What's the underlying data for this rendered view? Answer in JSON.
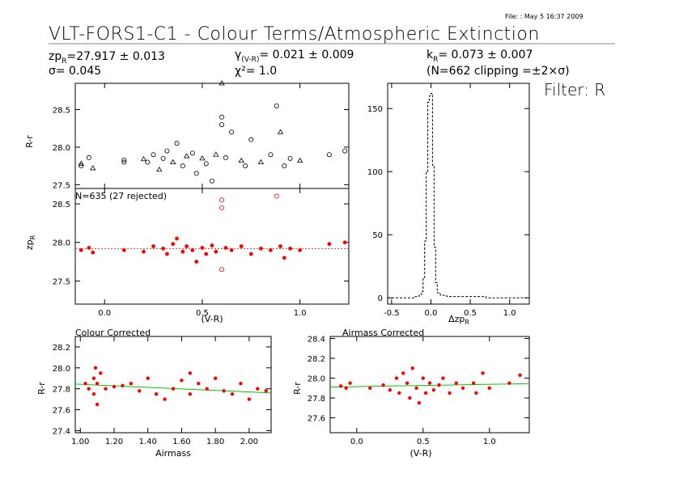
{
  "header": {
    "file_info": "File:   : May  5 16:37 2009",
    "title": "VLT-FORS1-C1 - Colour Terms/Atmospheric Extinction",
    "zp_label": "zp",
    "zp_sub": "R",
    "zp_value": "=27.917 ± 0.013",
    "sigma_text": "σ= 0.045",
    "gamma_label": "γ",
    "gamma_sub": "(V-R)",
    "gamma_value": "= 0.021 ± 0.009",
    "chi_text": "χ²=  1.0",
    "k_label": "k",
    "k_sub": "R",
    "k_value": "= 0.073 ± 0.007",
    "clip_text": "(N=662 clipping =±2×σ)",
    "filter_text": "Filter: R"
  },
  "colors": {
    "data": "#ff0000",
    "fit_line": "#00cc00",
    "zero_line": "#ff0000"
  },
  "chart_data": [
    {
      "type": "scatter",
      "panel": "raw colour term",
      "ylabel": "R-r",
      "xlim": [
        -0.15,
        1.25
      ],
      "ylim": [
        27.45,
        28.85
      ],
      "yticks": [
        27.5,
        28.0,
        28.5
      ],
      "note": "black circles and triangles; values approximate",
      "points": [
        [
          -0.12,
          27.78
        ],
        [
          -0.12,
          27.75
        ],
        [
          -0.08,
          27.86
        ],
        [
          -0.06,
          27.72
        ],
        [
          0.1,
          27.83
        ],
        [
          0.1,
          27.8
        ],
        [
          0.2,
          27.84
        ],
        [
          0.22,
          27.8
        ],
        [
          0.25,
          27.9
        ],
        [
          0.28,
          27.7
        ],
        [
          0.3,
          27.85
        ],
        [
          0.32,
          27.95
        ],
        [
          0.35,
          27.8
        ],
        [
          0.37,
          28.05
        ],
        [
          0.4,
          27.75
        ],
        [
          0.42,
          27.88
        ],
        [
          0.45,
          27.92
        ],
        [
          0.47,
          27.65
        ],
        [
          0.5,
          27.85
        ],
        [
          0.52,
          27.78
        ],
        [
          0.55,
          27.55
        ],
        [
          0.57,
          27.9
        ],
        [
          0.6,
          28.4
        ],
        [
          0.6,
          28.3
        ],
        [
          0.6,
          28.85
        ],
        [
          0.62,
          27.86
        ],
        [
          0.65,
          28.2
        ],
        [
          0.7,
          27.82
        ],
        [
          0.72,
          27.75
        ],
        [
          0.75,
          28.1
        ],
        [
          0.8,
          27.8
        ],
        [
          0.85,
          27.9
        ],
        [
          0.88,
          28.55
        ],
        [
          0.9,
          28.2
        ],
        [
          0.92,
          27.75
        ],
        [
          0.95,
          27.85
        ],
        [
          1.0,
          27.82
        ],
        [
          1.15,
          27.9
        ],
        [
          1.23,
          27.95
        ]
      ]
    },
    {
      "type": "scatter",
      "panel": "zero point",
      "label": "N=635 (27 rejected)",
      "ylabel": "zp",
      "ylabel_sub": "R",
      "xlabel": "(V-R)",
      "xlim": [
        -0.15,
        1.25
      ],
      "ylim": [
        27.2,
        28.7
      ],
      "xticks": [
        0.0,
        0.5,
        1.0
      ],
      "xticklabels": [
        "0.0",
        "0.5",
        "1.0"
      ],
      "yticks": [
        27.5,
        28.0,
        28.5
      ],
      "reference_y": 27.917,
      "points": [
        [
          -0.12,
          27.9
        ],
        [
          -0.08,
          27.93
        ],
        [
          -0.06,
          27.87
        ],
        [
          0.1,
          27.9
        ],
        [
          0.2,
          27.88
        ],
        [
          0.25,
          27.95
        ],
        [
          0.3,
          27.92
        ],
        [
          0.32,
          27.85
        ],
        [
          0.35,
          27.98
        ],
        [
          0.37,
          28.05
        ],
        [
          0.4,
          27.88
        ],
        [
          0.42,
          27.95
        ],
        [
          0.45,
          27.9
        ],
        [
          0.47,
          27.75
        ],
        [
          0.5,
          27.93
        ],
        [
          0.52,
          27.85
        ],
        [
          0.55,
          27.96
        ],
        [
          0.57,
          27.88
        ],
        [
          0.6,
          28.45
        ],
        [
          0.6,
          28.55
        ],
        [
          0.6,
          27.65
        ],
        [
          0.62,
          27.93
        ],
        [
          0.65,
          27.9
        ],
        [
          0.7,
          27.95
        ],
        [
          0.75,
          27.85
        ],
        [
          0.8,
          27.92
        ],
        [
          0.85,
          27.9
        ],
        [
          0.88,
          28.6
        ],
        [
          0.9,
          27.95
        ],
        [
          0.92,
          27.8
        ],
        [
          0.95,
          27.92
        ],
        [
          1.0,
          27.9
        ],
        [
          1.15,
          27.98
        ],
        [
          1.23,
          28.0
        ]
      ]
    },
    {
      "type": "histogram",
      "panel": "residual histogram",
      "xlabel": "Δzp",
      "xlabel_sub": "R",
      "xlim": [
        -0.55,
        1.25
      ],
      "ylim": [
        -5,
        170
      ],
      "xticks": [
        -0.5,
        0.0,
        0.5,
        1.0
      ],
      "xticklabels": [
        "-0.5",
        "0.0",
        "0.5",
        "1.0"
      ],
      "yticks": [
        0,
        50,
        100,
        150
      ],
      "bins": [
        [
          -0.55,
          0
        ],
        [
          -0.2,
          1
        ],
        [
          -0.15,
          2
        ],
        [
          -0.12,
          5
        ],
        [
          -0.1,
          15
        ],
        [
          -0.08,
          45
        ],
        [
          -0.06,
          100
        ],
        [
          -0.04,
          155
        ],
        [
          -0.02,
          160
        ],
        [
          0.0,
          162
        ],
        [
          0.02,
          105
        ],
        [
          0.04,
          40
        ],
        [
          0.06,
          12
        ],
        [
          0.08,
          4
        ],
        [
          0.12,
          2
        ],
        [
          0.2,
          1
        ],
        [
          0.4,
          1
        ],
        [
          0.6,
          1
        ],
        [
          0.7,
          0
        ],
        [
          1.25,
          0
        ]
      ]
    },
    {
      "type": "scatter",
      "panel": "colour corrected",
      "title": "Colour Corrected",
      "xlabel": "Airmass",
      "ylabel": "R-r",
      "xlim": [
        0.97,
        2.13
      ],
      "ylim": [
        27.38,
        28.3
      ],
      "xticks": [
        1.0,
        1.2,
        1.4,
        1.6,
        1.8,
        2.0
      ],
      "xticklabels": [
        "1.00",
        "1.20",
        "1.40",
        "1.60",
        "1.80",
        "2.00"
      ],
      "yticks": [
        27.4,
        27.6,
        27.8,
        28.0,
        28.2
      ],
      "yticklabels": [
        "27.4",
        "27.6",
        "27.8",
        "28.0",
        "28.2"
      ],
      "fit_line": [
        [
          0.97,
          27.845
        ],
        [
          2.13,
          27.76
        ]
      ],
      "points": [
        [
          1.03,
          27.85
        ],
        [
          1.05,
          27.8
        ],
        [
          1.08,
          27.9
        ],
        [
          1.08,
          27.75
        ],
        [
          1.09,
          28.0
        ],
        [
          1.1,
          27.65
        ],
        [
          1.1,
          27.85
        ],
        [
          1.12,
          27.95
        ],
        [
          1.15,
          27.8
        ],
        [
          1.2,
          27.82
        ],
        [
          1.25,
          27.83
        ],
        [
          1.3,
          27.85
        ],
        [
          1.35,
          27.78
        ],
        [
          1.4,
          27.9
        ],
        [
          1.45,
          27.75
        ],
        [
          1.5,
          27.7
        ],
        [
          1.55,
          27.8
        ],
        [
          1.6,
          27.88
        ],
        [
          1.65,
          27.95
        ],
        [
          1.65,
          27.75
        ],
        [
          1.7,
          27.85
        ],
        [
          1.75,
          27.8
        ],
        [
          1.8,
          27.9
        ],
        [
          1.85,
          27.78
        ],
        [
          1.9,
          27.75
        ],
        [
          1.95,
          27.85
        ],
        [
          2.0,
          27.7
        ],
        [
          2.05,
          27.8
        ],
        [
          2.1,
          27.78
        ]
      ]
    },
    {
      "type": "scatter",
      "panel": "airmass corrected",
      "title": "Airmass Corrected",
      "xlabel": "(V-R)",
      "ylabel": "R-r",
      "xlim": [
        -0.2,
        1.3
      ],
      "ylim": [
        27.45,
        28.42
      ],
      "xticks": [
        0.0,
        0.5,
        1.0
      ],
      "xticklabels": [
        "0.0",
        "0.5",
        "1.0"
      ],
      "yticks": [
        27.6,
        27.8,
        28.0,
        28.2,
        28.4
      ],
      "yticklabels": [
        "27.6",
        "27.8",
        "28.0",
        "28.2",
        "28.4"
      ],
      "fit_line": [
        [
          -0.2,
          27.91
        ],
        [
          1.3,
          27.945
        ]
      ],
      "points": [
        [
          -0.12,
          27.92
        ],
        [
          -0.08,
          27.9
        ],
        [
          -0.05,
          27.95
        ],
        [
          0.1,
          27.9
        ],
        [
          0.2,
          27.93
        ],
        [
          0.25,
          27.88
        ],
        [
          0.3,
          28.0
        ],
        [
          0.32,
          27.85
        ],
        [
          0.35,
          28.05
        ],
        [
          0.38,
          27.95
        ],
        [
          0.4,
          27.8
        ],
        [
          0.42,
          28.1
        ],
        [
          0.45,
          27.9
        ],
        [
          0.47,
          27.75
        ],
        [
          0.5,
          28.0
        ],
        [
          0.52,
          27.85
        ],
        [
          0.55,
          27.95
        ],
        [
          0.58,
          27.88
        ],
        [
          0.62,
          27.93
        ],
        [
          0.65,
          28.0
        ],
        [
          0.7,
          27.85
        ],
        [
          0.75,
          27.95
        ],
        [
          0.8,
          27.9
        ],
        [
          0.88,
          27.95
        ],
        [
          0.9,
          27.85
        ],
        [
          0.95,
          28.05
        ],
        [
          1.0,
          27.9
        ],
        [
          1.15,
          27.95
        ],
        [
          1.23,
          28.03
        ]
      ]
    }
  ]
}
